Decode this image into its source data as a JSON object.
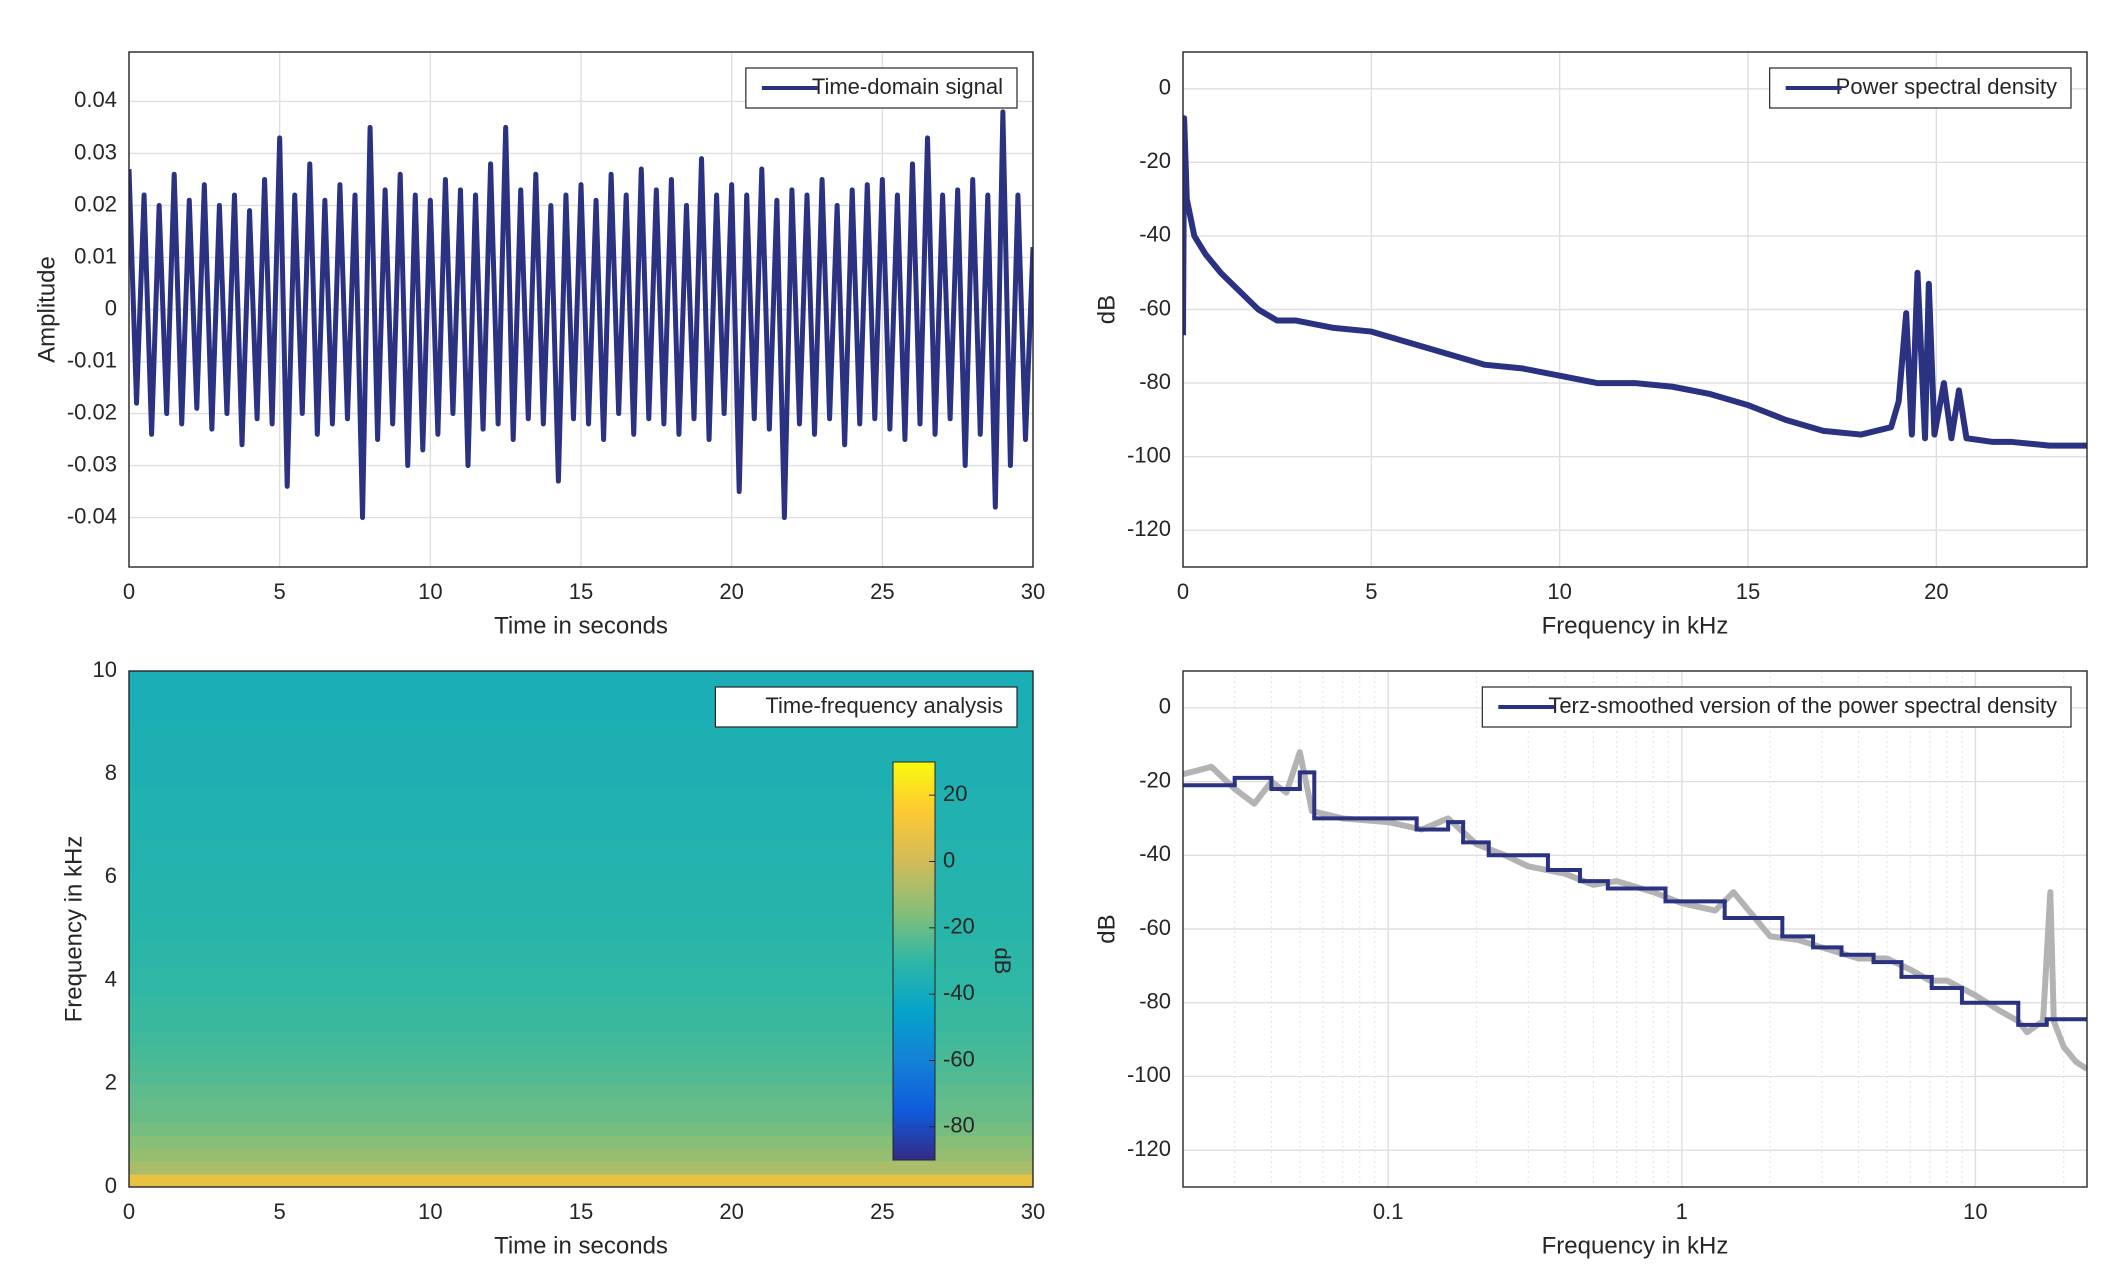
{
  "chart_data": [
    {
      "type": "line",
      "xlabel": "Time in seconds",
      "ylabel": "Amplitude",
      "xlim": [
        0,
        30
      ],
      "ylim": [
        -0.0495,
        0.0495
      ],
      "xticks": [
        0,
        5,
        10,
        15,
        20,
        25,
        30
      ],
      "yticks": [
        -0.04,
        -0.03,
        -0.02,
        -0.01,
        0,
        0.01,
        0.02,
        0.03,
        0.04
      ],
      "grid": true,
      "legend": "northeast",
      "x": [
        0,
        0.25,
        0.5,
        0.75,
        1,
        1.25,
        1.5,
        1.75,
        2,
        2.25,
        2.5,
        2.75,
        3,
        3.25,
        3.5,
        3.75,
        4,
        4.25,
        4.5,
        4.75,
        5,
        5.25,
        5.5,
        5.75,
        6,
        6.25,
        6.5,
        6.75,
        7,
        7.25,
        7.5,
        7.75,
        8,
        8.25,
        8.5,
        8.75,
        9,
        9.25,
        9.5,
        9.75,
        10,
        10.25,
        10.5,
        10.75,
        11,
        11.25,
        11.5,
        11.75,
        12,
        12.25,
        12.5,
        12.75,
        13,
        13.25,
        13.5,
        13.75,
        14,
        14.25,
        14.5,
        14.75,
        15,
        15.25,
        15.5,
        15.75,
        16,
        16.25,
        16.5,
        16.75,
        17,
        17.25,
        17.5,
        17.75,
        18,
        18.25,
        18.5,
        18.75,
        19,
        19.25,
        19.5,
        19.75,
        20,
        20.25,
        20.5,
        20.75,
        21,
        21.25,
        21.5,
        21.75,
        22,
        22.25,
        22.5,
        22.75,
        23,
        23.25,
        23.5,
        23.75,
        24,
        24.25,
        24.5,
        24.75,
        25,
        25.25,
        25.5,
        25.75,
        26,
        26.25,
        26.5,
        26.75,
        27,
        27.25,
        27.5,
        27.75,
        28,
        28.25,
        28.5,
        28.75,
        29,
        29.25,
        29.5,
        29.75,
        30
      ],
      "series": [
        {
          "name": "Time-domain signal",
          "color": "#2b3281",
          "values": [
            0.027,
            -0.018,
            0.022,
            -0.024,
            0.02,
            -0.02,
            0.026,
            -0.022,
            0.021,
            -0.019,
            0.024,
            -0.023,
            0.02,
            -0.02,
            0.022,
            -0.026,
            0.019,
            -0.021,
            0.025,
            -0.022,
            0.033,
            -0.034,
            0.022,
            -0.02,
            0.028,
            -0.024,
            0.021,
            -0.022,
            0.024,
            -0.021,
            0.022,
            -0.04,
            0.035,
            -0.025,
            0.023,
            -0.022,
            0.026,
            -0.03,
            0.022,
            -0.027,
            0.021,
            -0.024,
            0.025,
            -0.02,
            0.023,
            -0.03,
            0.022,
            -0.023,
            0.028,
            -0.022,
            0.035,
            -0.025,
            0.023,
            -0.021,
            0.026,
            -0.022,
            0.02,
            -0.033,
            0.022,
            -0.021,
            0.024,
            -0.022,
            0.021,
            -0.025,
            0.026,
            -0.02,
            0.022,
            -0.024,
            0.027,
            -0.021,
            0.023,
            -0.022,
            0.025,
            -0.024,
            0.02,
            -0.021,
            0.029,
            -0.025,
            0.022,
            -0.02,
            0.024,
            -0.035,
            0.022,
            -0.021,
            0.027,
            -0.023,
            0.021,
            -0.04,
            0.023,
            -0.022,
            0.022,
            -0.024,
            0.025,
            -0.021,
            0.02,
            -0.026,
            0.023,
            -0.022,
            0.024,
            -0.021,
            0.025,
            -0.023,
            0.022,
            -0.025,
            0.028,
            -0.022,
            0.033,
            -0.024,
            0.022,
            -0.021,
            0.023,
            -0.03,
            0.025,
            -0.024,
            0.022,
            -0.038,
            0.038,
            -0.03,
            0.022,
            -0.025,
            0.012
          ]
        }
      ]
    },
    {
      "type": "line",
      "xlabel": "Frequency in kHz",
      "ylabel": "dB",
      "xlim": [
        0,
        24
      ],
      "ylim": [
        -130,
        10
      ],
      "xticks": [
        0,
        5,
        10,
        15,
        20
      ],
      "yticks": [
        -120,
        -100,
        -80,
        -60,
        -40,
        -20,
        0
      ],
      "grid": true,
      "legend": "northeast",
      "x": [
        0,
        0.03,
        0.1,
        0.3,
        0.6,
        1,
        1.5,
        2,
        2.5,
        3,
        4,
        5,
        6,
        7,
        8,
        9,
        10,
        11,
        12,
        13,
        14,
        15,
        16,
        17,
        18,
        18.8,
        19,
        19.2,
        19.35,
        19.5,
        19.7,
        19.8,
        19.95,
        20.2,
        20.4,
        20.6,
        20.8,
        21.5,
        22,
        23,
        24
      ],
      "series": [
        {
          "name": "Power spectral density",
          "color": "#2b3281",
          "values": [
            -67,
            -8,
            -30,
            -40,
            -45,
            -50,
            -55,
            -60,
            -63,
            -63,
            -65,
            -66,
            -69,
            -72,
            -75,
            -76,
            -78,
            -80,
            -80,
            -81,
            -83,
            -86,
            -90,
            -93,
            -94,
            -92,
            -85,
            -61,
            -94,
            -50,
            -95,
            -53,
            -94,
            -80,
            -95,
            -82,
            -95,
            -96,
            -96,
            -97,
            -97
          ]
        }
      ]
    },
    {
      "type": "heatmap",
      "xlabel": "Time in seconds",
      "ylabel": "Frequency in kHz",
      "xlim": [
        0,
        30
      ],
      "ylim": [
        0,
        10
      ],
      "xticks": [
        0,
        5,
        10,
        15,
        20,
        25,
        30
      ],
      "yticks": [
        0,
        2,
        4,
        6,
        8,
        10
      ],
      "grid": false,
      "legend": "northeast",
      "legend_text": "Time-frequency analysis",
      "y": [
        0,
        0.25,
        0.5,
        0.75,
        1,
        1.25,
        1.5,
        1.75,
        2,
        2.25,
        2.5,
        2.75,
        3,
        3.25,
        3.5,
        3.75,
        4,
        4.25,
        4.5,
        4.75,
        5,
        5.25,
        5.5,
        5.75,
        6,
        6.25,
        6.5,
        6.75,
        7,
        7.25,
        7.5,
        7.75,
        8,
        8.25,
        8.5,
        8.75,
        9,
        9.25,
        9.5,
        9.75,
        10
      ],
      "values": [
        8,
        -8,
        -12,
        -15,
        -18,
        -20,
        -21,
        -22,
        -24,
        -25,
        -26,
        -27,
        -28,
        -28,
        -29,
        -30,
        -30,
        -31,
        -31,
        -32,
        -32,
        -33,
        -33,
        -33,
        -34,
        -34,
        -34,
        -35,
        -35,
        -35,
        -35,
        -36,
        -36,
        -36,
        -36,
        -36,
        -37,
        -37,
        -37,
        -37
      ],
      "clim": [
        -90,
        30
      ],
      "cticks": [
        -80,
        -60,
        -40,
        -20,
        0,
        20
      ],
      "clabel": "dB",
      "colormap": [
        "#352a87",
        "#0f5cdd",
        "#1481d6",
        "#06a4ca",
        "#2eb7a4",
        "#87bf77",
        "#d1bb59",
        "#fec832",
        "#f9fb0e"
      ]
    },
    {
      "type": "line",
      "xlabel": "Frequency in kHz",
      "ylabel": "dB",
      "xlim": [
        0.02,
        24
      ],
      "ylim": [
        -130,
        10
      ],
      "xscale": "log",
      "xticks": [
        0.1,
        1,
        10
      ],
      "yticks": [
        -120,
        -100,
        -80,
        -60,
        -40,
        -20,
        0
      ],
      "grid": true,
      "legend": "northeast",
      "series": [
        {
          "color": "#b3b3b3",
          "x": [
            0.02,
            0.025,
            0.03,
            0.035,
            0.04,
            0.045,
            0.05,
            0.055,
            0.07,
            0.1,
            0.13,
            0.16,
            0.2,
            0.25,
            0.3,
            0.4,
            0.5,
            0.6,
            0.8,
            1,
            1.3,
            1.5,
            2,
            2.5,
            3,
            4,
            5,
            6,
            7,
            8,
            10,
            12,
            14,
            15,
            17,
            18,
            18.5,
            20,
            22,
            24
          ],
          "values": [
            -18,
            -16,
            -22,
            -26,
            -20,
            -23,
            -12,
            -28,
            -30,
            -31,
            -33,
            -30,
            -37,
            -40,
            -43,
            -45,
            -48,
            -47,
            -50,
            -53,
            -55,
            -50,
            -62,
            -63,
            -65,
            -68,
            -68,
            -71,
            -74,
            -74,
            -78,
            -82,
            -85,
            -88,
            -85,
            -50,
            -85,
            -92,
            -96,
            -98
          ]
        },
        {
          "name": "Terz-smoothed version of the power spectral density",
          "color": "#2b3281",
          "step": "post",
          "x": [
            0.02,
            0.03,
            0.04,
            0.05,
            0.056,
            0.125,
            0.16,
            0.18,
            0.22,
            0.35,
            0.45,
            0.56,
            0.88,
            1.4,
            2.2,
            2.8,
            3.5,
            4.5,
            5.6,
            7.1,
            9,
            14,
            17.5,
            24
          ],
          "values": [
            -21,
            -19,
            -22,
            -17.5,
            -30,
            -33,
            -31,
            -36.5,
            -40,
            -44,
            -47,
            -49,
            -52.5,
            -57,
            -62,
            -65,
            -67,
            -69,
            -73,
            -76,
            -80,
            -86,
            -84.5,
            -84.5
          ]
        }
      ]
    }
  ]
}
